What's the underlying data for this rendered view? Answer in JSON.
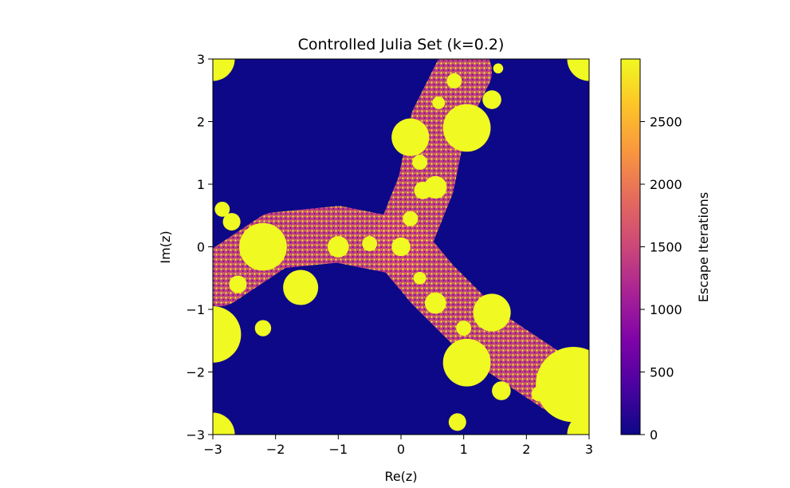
{
  "chart_data": {
    "type": "heatmap",
    "title": "Controlled Julia Set (k=0.2)",
    "xlabel": "Re(z)",
    "ylabel": "Im(z)",
    "xlim": [
      -3,
      3
    ],
    "ylim": [
      -3,
      3
    ],
    "x_ticks": [
      -3,
      -2,
      -1,
      0,
      1,
      2,
      3
    ],
    "y_ticks": [
      -3,
      -2,
      -1,
      0,
      1,
      2,
      3
    ],
    "x_tick_labels": [
      "−3",
      "−2",
      "−1",
      "0",
      "1",
      "2",
      "3"
    ],
    "y_tick_labels": [
      "−3",
      "−2",
      "−1",
      "0",
      "1",
      "2",
      "3"
    ],
    "colormap": "plasma",
    "colorbar": {
      "label": "Escape Iterations",
      "range": [
        0,
        3000
      ],
      "ticks": [
        0,
        500,
        1000,
        1500,
        2000,
        2500
      ],
      "tick_labels": [
        "0",
        "500",
        "1000",
        "1500",
        "2000",
        "2500"
      ]
    },
    "colors": {
      "background_low": "#0d0887",
      "high": "#f0f921",
      "mid": "#cc4778",
      "low_mid": "#7e03a8"
    },
    "structure": {
      "arms": 3,
      "arm_directions_deg": [
        90,
        165,
        295
      ],
      "center_disc": [
        0,
        0
      ]
    },
    "grid": false
  }
}
